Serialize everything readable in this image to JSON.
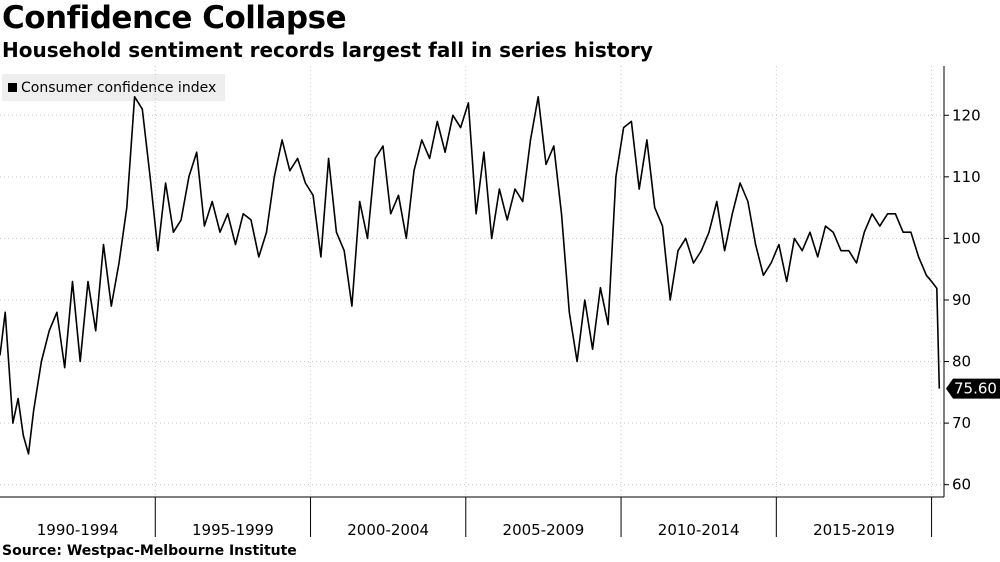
{
  "title": "Confidence Collapse",
  "subtitle": "Household sentiment records largest fall in series history",
  "source": "Source: Westpac-Melbourne Institute",
  "chart_data": {
    "type": "line",
    "title": "Confidence Collapse",
    "subtitle": "Household sentiment records largest fall in series history",
    "xlabel": "",
    "ylabel": "",
    "ylim": [
      58,
      128
    ],
    "yticks": [
      60,
      70,
      80,
      90,
      100,
      110,
      120
    ],
    "x_categories": [
      "1990-1994",
      "1995-1999",
      "2000-2004",
      "2005-2009",
      "2010-2014",
      "2015-2019"
    ],
    "x_range": [
      "1990-01",
      "2020-04"
    ],
    "grid": true,
    "legend": "top-left",
    "y_axis_side": "right",
    "series": [
      {
        "name": "Consumer confidence index",
        "color": "#000000",
        "last_value_label": "75.60",
        "points": [
          [
            "1990-01",
            81
          ],
          [
            "1990-03",
            88
          ],
          [
            "1990-06",
            70
          ],
          [
            "1990-08",
            74
          ],
          [
            "1990-10",
            68
          ],
          [
            "1990-12",
            65
          ],
          [
            "1991-02",
            72
          ],
          [
            "1991-05",
            80
          ],
          [
            "1991-08",
            85
          ],
          [
            "1991-11",
            88
          ],
          [
            "1992-02",
            79
          ],
          [
            "1992-05",
            93
          ],
          [
            "1992-08",
            80
          ],
          [
            "1992-11",
            93
          ],
          [
            "1993-02",
            85
          ],
          [
            "1993-05",
            99
          ],
          [
            "1993-08",
            89
          ],
          [
            "1993-11",
            96
          ],
          [
            "1994-02",
            105
          ],
          [
            "1994-05",
            123
          ],
          [
            "1994-08",
            121
          ],
          [
            "1994-11",
            110
          ],
          [
            "1995-02",
            98
          ],
          [
            "1995-05",
            109
          ],
          [
            "1995-08",
            101
          ],
          [
            "1995-11",
            103
          ],
          [
            "1996-02",
            110
          ],
          [
            "1996-05",
            114
          ],
          [
            "1996-08",
            102
          ],
          [
            "1996-11",
            106
          ],
          [
            "1997-02",
            101
          ],
          [
            "1997-05",
            104
          ],
          [
            "1997-08",
            99
          ],
          [
            "1997-11",
            104
          ],
          [
            "1998-02",
            103
          ],
          [
            "1998-05",
            97
          ],
          [
            "1998-08",
            101
          ],
          [
            "1998-11",
            110
          ],
          [
            "1999-02",
            116
          ],
          [
            "1999-05",
            111
          ],
          [
            "1999-08",
            113
          ],
          [
            "1999-11",
            109
          ],
          [
            "2000-02",
            107
          ],
          [
            "2000-05",
            97
          ],
          [
            "2000-08",
            113
          ],
          [
            "2000-11",
            101
          ],
          [
            "2001-02",
            98
          ],
          [
            "2001-05",
            89
          ],
          [
            "2001-08",
            106
          ],
          [
            "2001-11",
            100
          ],
          [
            "2002-02",
            113
          ],
          [
            "2002-05",
            115
          ],
          [
            "2002-08",
            104
          ],
          [
            "2002-11",
            107
          ],
          [
            "2003-02",
            100
          ],
          [
            "2003-05",
            111
          ],
          [
            "2003-08",
            116
          ],
          [
            "2003-11",
            113
          ],
          [
            "2004-02",
            119
          ],
          [
            "2004-05",
            114
          ],
          [
            "2004-08",
            120
          ],
          [
            "2004-11",
            118
          ],
          [
            "2005-02",
            122
          ],
          [
            "2005-05",
            104
          ],
          [
            "2005-08",
            114
          ],
          [
            "2005-11",
            100
          ],
          [
            "2006-02",
            108
          ],
          [
            "2006-05",
            103
          ],
          [
            "2006-08",
            108
          ],
          [
            "2006-11",
            106
          ],
          [
            "2007-02",
            116
          ],
          [
            "2007-05",
            123
          ],
          [
            "2007-08",
            112
          ],
          [
            "2007-11",
            115
          ],
          [
            "2008-02",
            104
          ],
          [
            "2008-05",
            88
          ],
          [
            "2008-08",
            80
          ],
          [
            "2008-11",
            90
          ],
          [
            "2009-02",
            82
          ],
          [
            "2009-05",
            92
          ],
          [
            "2009-08",
            86
          ],
          [
            "2009-11",
            110
          ],
          [
            "2010-02",
            118
          ],
          [
            "2010-05",
            119
          ],
          [
            "2010-08",
            108
          ],
          [
            "2010-11",
            116
          ],
          [
            "2011-02",
            105
          ],
          [
            "2011-05",
            102
          ],
          [
            "2011-08",
            90
          ],
          [
            "2011-11",
            98
          ],
          [
            "2012-02",
            100
          ],
          [
            "2012-05",
            96
          ],
          [
            "2012-08",
            98
          ],
          [
            "2012-11",
            101
          ],
          [
            "2013-02",
            106
          ],
          [
            "2013-05",
            98
          ],
          [
            "2013-08",
            104
          ],
          [
            "2013-11",
            109
          ],
          [
            "2014-02",
            106
          ],
          [
            "2014-05",
            99
          ],
          [
            "2014-08",
            94
          ],
          [
            "2014-11",
            96
          ],
          [
            "2015-02",
            99
          ],
          [
            "2015-05",
            93
          ],
          [
            "2015-08",
            100
          ],
          [
            "2015-11",
            98
          ],
          [
            "2016-02",
            101
          ],
          [
            "2016-05",
            97
          ],
          [
            "2016-08",
            102
          ],
          [
            "2016-11",
            101
          ],
          [
            "2017-02",
            98
          ],
          [
            "2017-05",
            98
          ],
          [
            "2017-08",
            96
          ],
          [
            "2017-11",
            101
          ],
          [
            "2018-02",
            104
          ],
          [
            "2018-05",
            102
          ],
          [
            "2018-08",
            104
          ],
          [
            "2018-11",
            104
          ],
          [
            "2019-02",
            101
          ],
          [
            "2019-05",
            101
          ],
          [
            "2019-08",
            97
          ],
          [
            "2019-11",
            94
          ],
          [
            "2020-01",
            93
          ],
          [
            "2020-03",
            91.9
          ],
          [
            "2020-04",
            75.6
          ]
        ]
      }
    ]
  }
}
